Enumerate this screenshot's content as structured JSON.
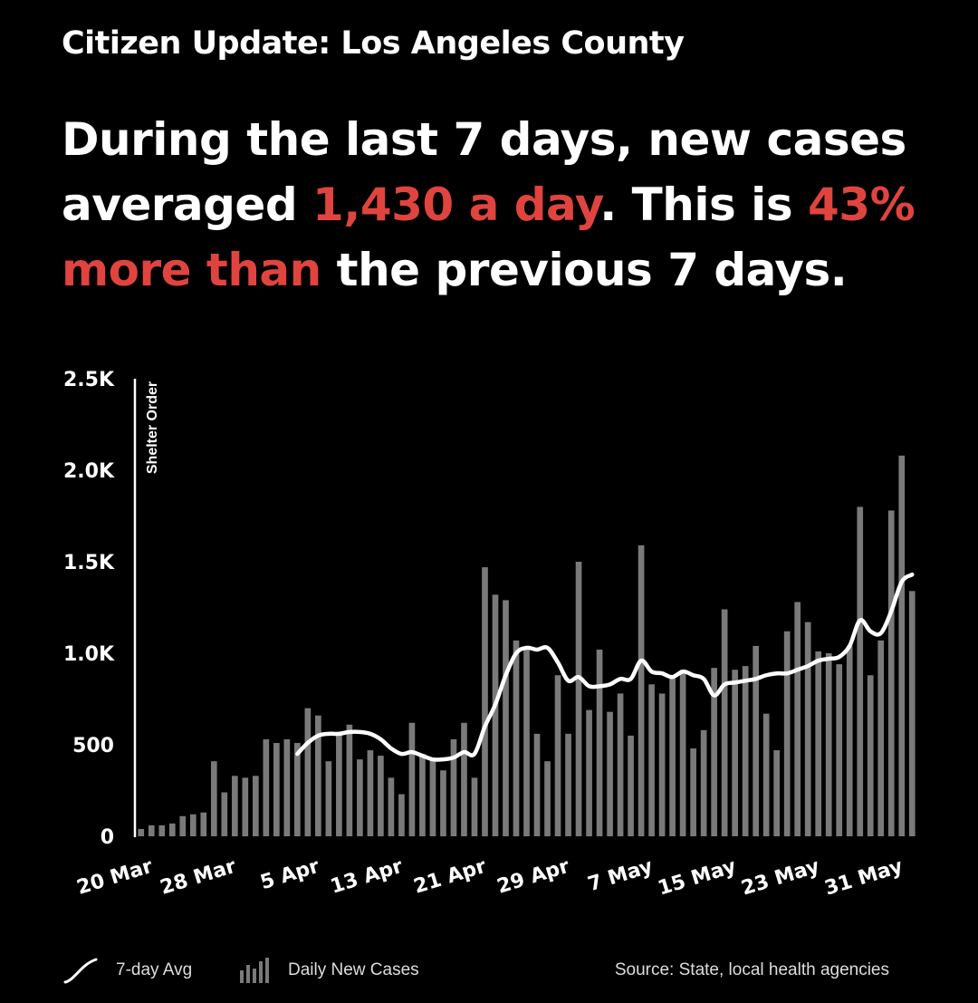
{
  "header": {
    "title": "Citizen Update: Los Angeles County",
    "headline": {
      "part1": "During the last 7 days, new cases averaged ",
      "hl1": "1,430 a day",
      "part2": ". This is ",
      "hl2": "43% more than",
      "part3": " the previous 7 days."
    }
  },
  "colors": {
    "background": "#000000",
    "bar": "#7a7a7a",
    "line": "#ffffff",
    "highlight": "#e0443e",
    "text": "#ffffff"
  },
  "chart_data": {
    "type": "bar",
    "ylim": [
      0,
      2500
    ],
    "yticks": [
      0,
      500,
      1000,
      1500,
      2000,
      2500
    ],
    "ytick_labels": [
      "0",
      "500",
      "1.0K",
      "1.5K",
      "2.0K",
      "2.5K"
    ],
    "x_start": "2020-03-20",
    "x_end": "2020-05-31",
    "xtick_labels": [
      "20 Mar",
      "28 Mar",
      "5 Apr",
      "13 Apr",
      "21 Apr",
      "29 Apr",
      "7 May",
      "15 May",
      "23 May",
      "31 May"
    ],
    "annotation": "Shelter Order",
    "grid": false,
    "legend_position": "bottom-left",
    "series": [
      {
        "name": "Daily New Cases",
        "type": "bar",
        "values": [
          40,
          60,
          60,
          70,
          110,
          120,
          130,
          410,
          240,
          330,
          320,
          330,
          530,
          510,
          530,
          510,
          700,
          660,
          410,
          570,
          610,
          420,
          470,
          440,
          320,
          230,
          620,
          450,
          430,
          360,
          530,
          620,
          320,
          1470,
          1320,
          1290,
          1070,
          1030,
          560,
          410,
          880,
          560,
          1500,
          690,
          1020,
          680,
          780,
          550,
          1590,
          830,
          780,
          870,
          910,
          480,
          580,
          920,
          1240,
          910,
          930,
          1040,
          670,
          470,
          1120,
          1280,
          1170,
          1010,
          1000,
          940,
          1040,
          1800,
          880,
          1070,
          1780,
          2080,
          1340
        ]
      },
      {
        "name": "7-day Avg",
        "type": "line",
        "values": [
          null,
          null,
          null,
          null,
          null,
          null,
          null,
          null,
          null,
          null,
          null,
          null,
          null,
          null,
          null,
          450,
          510,
          550,
          560,
          560,
          570,
          570,
          560,
          530,
          480,
          450,
          460,
          440,
          420,
          420,
          430,
          460,
          450,
          600,
          720,
          880,
          1000,
          1030,
          1020,
          1030,
          950,
          850,
          870,
          820,
          820,
          830,
          860,
          860,
          960,
          900,
          890,
          870,
          900,
          880,
          860,
          770,
          830,
          840,
          850,
          860,
          880,
          890,
          890,
          910,
          930,
          960,
          970,
          980,
          1040,
          1180,
          1120,
          1110,
          1230,
          1390,
          1430
        ]
      }
    ]
  },
  "legend": {
    "line_label": "7-day Avg",
    "bars_label": "Daily New Cases"
  },
  "source": "Source: State, local health agencies"
}
